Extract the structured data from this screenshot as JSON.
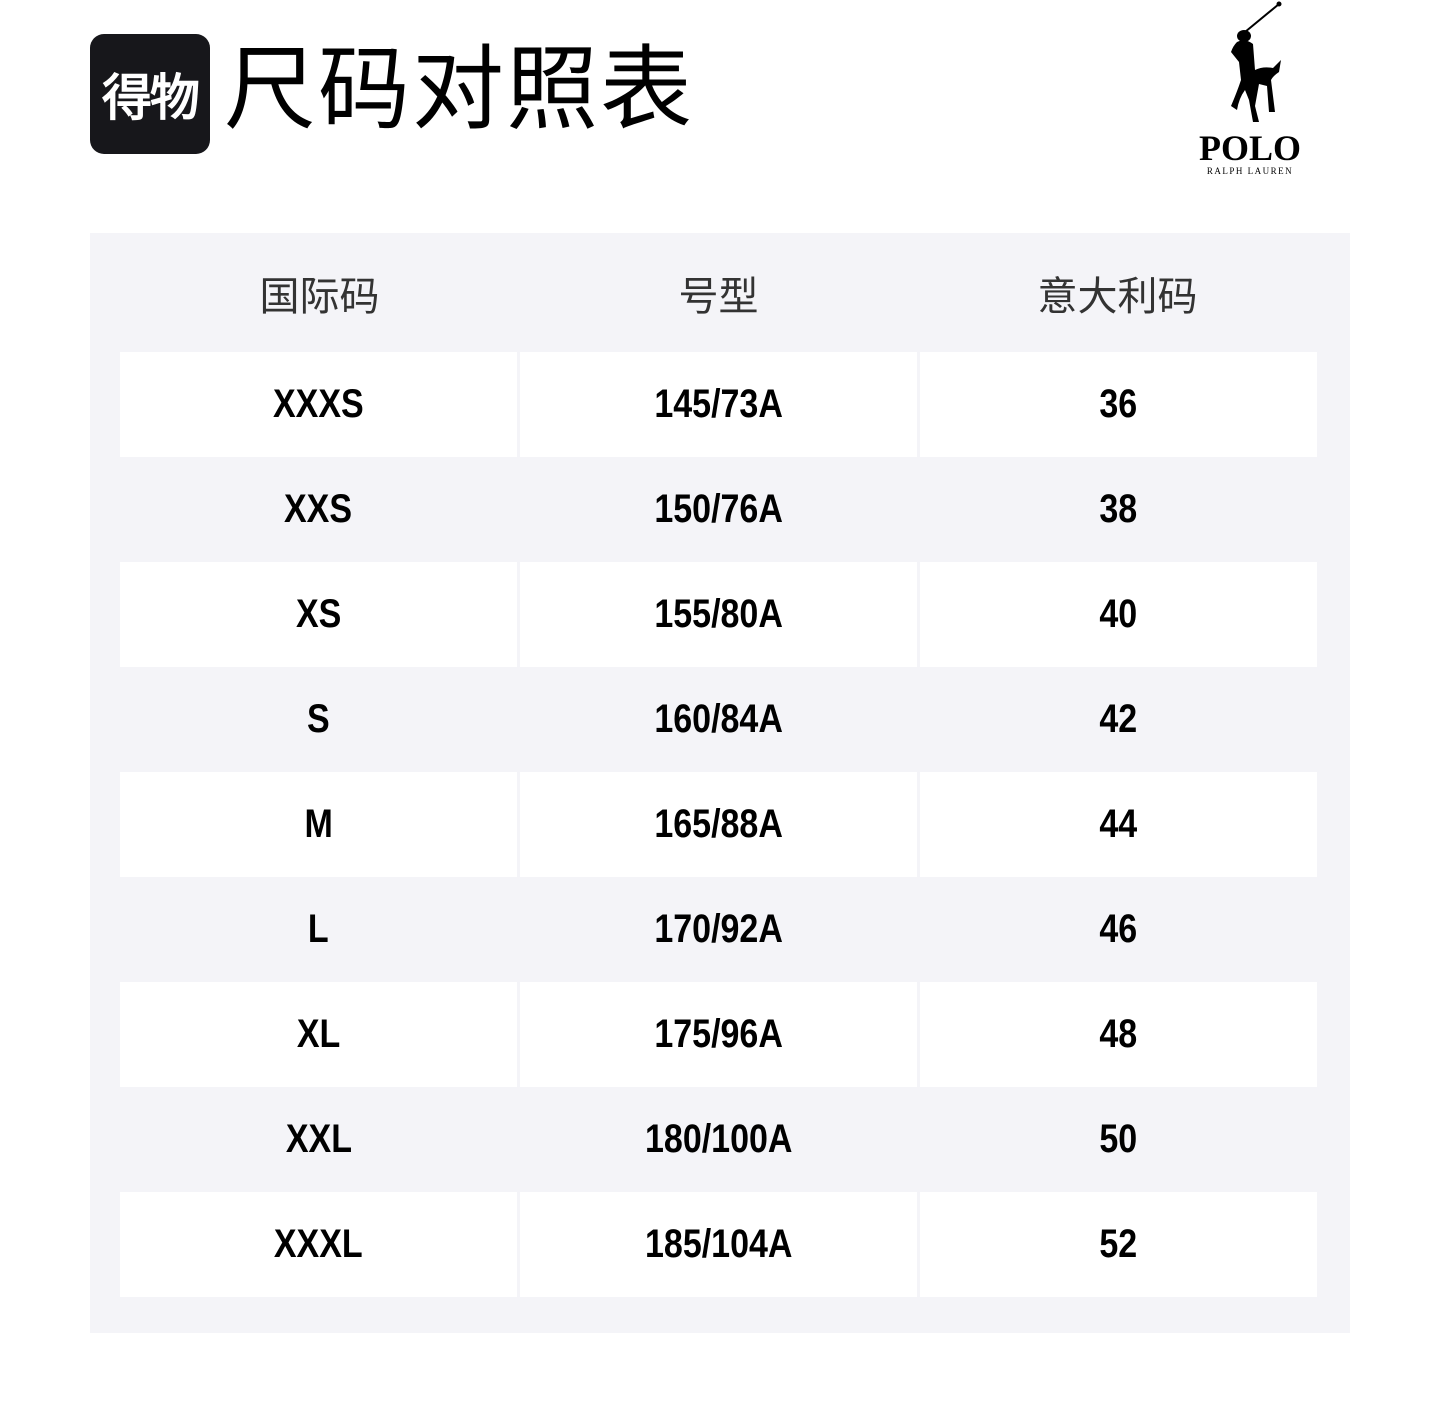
{
  "header": {
    "app_logo_text": "得物",
    "title": "尺码对照表",
    "brand": {
      "name": "POLO",
      "subtitle": "RALPH LAUREN"
    }
  },
  "table": {
    "columns": [
      "国际码",
      "号型",
      "意大利码"
    ],
    "rows": [
      [
        "XXXS",
        "145/73A",
        "36"
      ],
      [
        "XXS",
        "150/76A",
        "38"
      ],
      [
        "XS",
        "155/80A",
        "40"
      ],
      [
        "S",
        "160/84A",
        "42"
      ],
      [
        "M",
        "165/88A",
        "44"
      ],
      [
        "L",
        "170/92A",
        "46"
      ],
      [
        "XL",
        "175/96A",
        "48"
      ],
      [
        "XXL",
        "180/100A",
        "50"
      ],
      [
        "XXXL",
        "185/104A",
        "52"
      ]
    ]
  },
  "colors": {
    "panel": "#f4f4f8",
    "badge": "#17171b",
    "row_alt": "#ffffff"
  }
}
